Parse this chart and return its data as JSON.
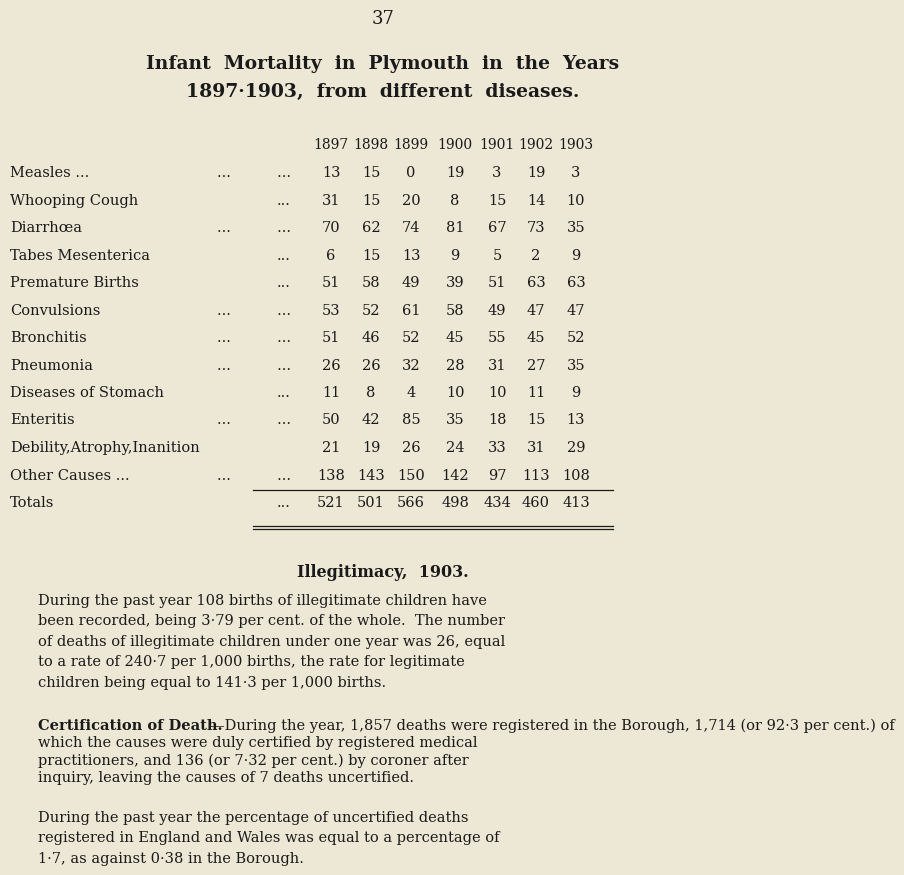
{
  "page_number": "37",
  "title_line1": "Infant  Mortality  in  Plymouth  in  the  Years",
  "title_line2": "1897·1903,  from  different  diseases.",
  "background_color": "#ede8d5",
  "text_color": "#1a1a1a",
  "years": [
    "1897",
    "1898",
    "1899",
    "1900",
    "1901",
    "1902",
    "1903"
  ],
  "row_labels": [
    "Measles ...          …",
    "Whooping Cough     …",
    "Diarrhœa          …",
    "Tabes Mesenterica  …",
    "Premature Births   …",
    "Convulsions        …",
    "Bronchitis         …",
    "Pneumonia          …",
    "Diseases of Stomach …",
    "Enteritis          …",
    "Debility,Atrophy,Inanition",
    "Other Causes ...   …",
    "Totals             …"
  ],
  "row_labels_raw": [
    "Measles ...",
    "Whooping Cough",
    "Diarrhœa",
    "Tabes Mesenterica",
    "Premature Births",
    "Convulsions",
    "Bronchitis",
    "Pneumonia",
    "Diseases of Stomach",
    "Enteritis",
    "Debility,Atrophy,Inanition",
    "Other Causes ...",
    "Totals"
  ],
  "row_dots": [
    "...          ...",
    "...",
    "...          ...",
    "...",
    "...",
    "...          ...",
    "...          ...",
    "...          ...",
    "...",
    "...          ...",
    "",
    "...          ...",
    "..."
  ],
  "values": [
    [
      13,
      15,
      0,
      19,
      3,
      19,
      3
    ],
    [
      31,
      15,
      20,
      8,
      15,
      14,
      10
    ],
    [
      70,
      62,
      74,
      81,
      67,
      73,
      35
    ],
    [
      6,
      15,
      13,
      9,
      5,
      2,
      9
    ],
    [
      51,
      58,
      49,
      39,
      51,
      63,
      63
    ],
    [
      53,
      52,
      61,
      58,
      49,
      47,
      47
    ],
    [
      51,
      46,
      52,
      45,
      55,
      45,
      52
    ],
    [
      26,
      26,
      32,
      28,
      31,
      27,
      35
    ],
    [
      11,
      8,
      4,
      10,
      10,
      11,
      9
    ],
    [
      50,
      42,
      85,
      35,
      18,
      15,
      13
    ],
    [
      21,
      19,
      26,
      24,
      33,
      31,
      29
    ],
    [
      138,
      143,
      150,
      142,
      97,
      113,
      108
    ],
    [
      521,
      501,
      566,
      498,
      434,
      460,
      413
    ]
  ],
  "section2_title": "Illegitimacy,  1903.",
  "section2_body": "During the past year 108 births of illegitimate children have\nbeen recorded, being 3·79 per cent. of the whole.  The number\nof deaths of illegitimate children under one year was 26, equal\nto a rate of 240·7 per 1,000 births, the rate for legitimate\nchildren being equal to 141·3 per 1,000 births.",
  "section3_bold": "Certification of Death.",
  "section3_rest": "—During the year, 1,857 deaths were registered in the Borough, 1,714 (or 92·3 per cent.) of\nwhich the causes were duly certified by registered medical\npractitioners, and 136 (or 7·32 per cent.) by coroner after\ninquiry, leaving the causes of 7 deaths uncertified.",
  "section4_body": "During the past year the percentage of uncertified deaths\nregistered in England and Wales was equal to a percentage of\n1·7, as against 0·38 in the Borough."
}
